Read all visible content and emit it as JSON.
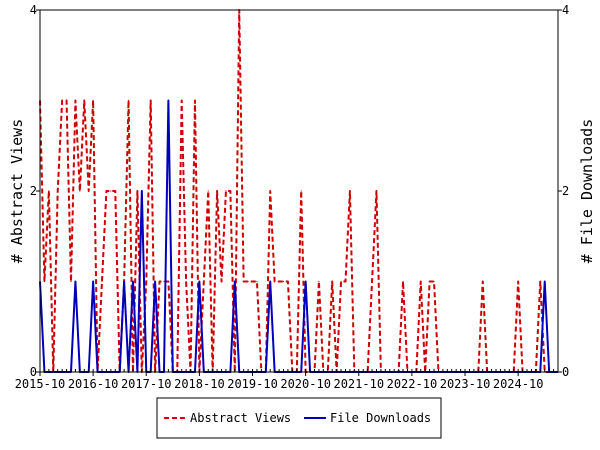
{
  "colors": {
    "abstract_views": "#cc0000",
    "file_downloads": "#0000bb",
    "axis": "#000000",
    "background": "#ffffff"
  },
  "chart_data": {
    "type": "line",
    "title": "",
    "xlabel": "",
    "ylabel_left": "# Abstract Views",
    "ylabel_right": "# File Downloads",
    "ylim_left": [
      0,
      4
    ],
    "ylim_right": [
      0,
      4
    ],
    "yticks_left": [
      "0",
      "2",
      "4"
    ],
    "yticks_right": [
      "0",
      "2",
      "4"
    ],
    "xlim": [
      "2015-10",
      "2025-07"
    ],
    "x_tick_labels": [
      "2015-10",
      "2016-10",
      "2017-10",
      "2018-10",
      "2019-10",
      "2020-10",
      "2021-10",
      "2022-10",
      "2023-10",
      "2024-10"
    ],
    "grid": false,
    "legend_position": "bottom-center",
    "series": [
      {
        "name": "Abstract Views",
        "style": "dashed",
        "points": [
          [
            "2015-10",
            3
          ],
          [
            "2015-11",
            1
          ],
          [
            "2015-12",
            2
          ],
          [
            "2016-01",
            0
          ],
          [
            "2016-02",
            2
          ],
          [
            "2016-03",
            3
          ],
          [
            "2016-04",
            3
          ],
          [
            "2016-05",
            1
          ],
          [
            "2016-06",
            3
          ],
          [
            "2016-07",
            2
          ],
          [
            "2016-08",
            3
          ],
          [
            "2016-09",
            2
          ],
          [
            "2016-10",
            3
          ],
          [
            "2016-11",
            0
          ],
          [
            "2016-12",
            1
          ],
          [
            "2017-01",
            2
          ],
          [
            "2017-02",
            2
          ],
          [
            "2017-03",
            2
          ],
          [
            "2017-04",
            0
          ],
          [
            "2017-05",
            1
          ],
          [
            "2017-06",
            3
          ],
          [
            "2017-07",
            0
          ],
          [
            "2017-08",
            2
          ],
          [
            "2017-09",
            0
          ],
          [
            "2017-10",
            1
          ],
          [
            "2017-11",
            3
          ],
          [
            "2017-12",
            0
          ],
          [
            "2018-01",
            1
          ],
          [
            "2018-02",
            1
          ],
          [
            "2018-03",
            1
          ],
          [
            "2018-04",
            0
          ],
          [
            "2018-05",
            0
          ],
          [
            "2018-06",
            3
          ],
          [
            "2018-07",
            1
          ],
          [
            "2018-08",
            0
          ],
          [
            "2018-09",
            3
          ],
          [
            "2018-10",
            0
          ],
          [
            "2018-11",
            1
          ],
          [
            "2018-12",
            2
          ],
          [
            "2019-01",
            0
          ],
          [
            "2019-02",
            2
          ],
          [
            "2019-03",
            1
          ],
          [
            "2019-04",
            2
          ],
          [
            "2019-05",
            2
          ],
          [
            "2019-06",
            0
          ],
          [
            "2019-07",
            4
          ],
          [
            "2019-08",
            1
          ],
          [
            "2019-09",
            1
          ],
          [
            "2019-10",
            1
          ],
          [
            "2019-11",
            1
          ],
          [
            "2019-12",
            0
          ],
          [
            "2020-01",
            0
          ],
          [
            "2020-02",
            2
          ],
          [
            "2020-03",
            1
          ],
          [
            "2020-04",
            1
          ],
          [
            "2020-05",
            1
          ],
          [
            "2020-06",
            1
          ],
          [
            "2020-07",
            0
          ],
          [
            "2020-08",
            0
          ],
          [
            "2020-09",
            2
          ],
          [
            "2020-10",
            0
          ],
          [
            "2020-11",
            0
          ],
          [
            "2020-12",
            0
          ],
          [
            "2021-01",
            1
          ],
          [
            "2021-02",
            0
          ],
          [
            "2021-03",
            0
          ],
          [
            "2021-04",
            1
          ],
          [
            "2021-05",
            0
          ],
          [
            "2021-06",
            1
          ],
          [
            "2021-07",
            1
          ],
          [
            "2021-08",
            2
          ],
          [
            "2021-09",
            0
          ],
          [
            "2021-10",
            0
          ],
          [
            "2021-11",
            0
          ],
          [
            "2021-12",
            0
          ],
          [
            "2022-01",
            1
          ],
          [
            "2022-02",
            2
          ],
          [
            "2022-03",
            0
          ],
          [
            "2022-04",
            0
          ],
          [
            "2022-05",
            0
          ],
          [
            "2022-06",
            0
          ],
          [
            "2022-07",
            0
          ],
          [
            "2022-08",
            1
          ],
          [
            "2022-09",
            0
          ],
          [
            "2022-10",
            0
          ],
          [
            "2022-11",
            0
          ],
          [
            "2022-12",
            1
          ],
          [
            "2023-01",
            0
          ],
          [
            "2023-02",
            1
          ],
          [
            "2023-03",
            1
          ],
          [
            "2023-04",
            0
          ],
          [
            "2023-05",
            0
          ],
          [
            "2023-06",
            0
          ],
          [
            "2023-07",
            0
          ],
          [
            "2023-08",
            0
          ],
          [
            "2023-09",
            0
          ],
          [
            "2023-10",
            0
          ],
          [
            "2023-11",
            0
          ],
          [
            "2023-12",
            0
          ],
          [
            "2024-01",
            0
          ],
          [
            "2024-02",
            1
          ],
          [
            "2024-03",
            0
          ],
          [
            "2024-04",
            0
          ],
          [
            "2024-05",
            0
          ],
          [
            "2024-06",
            0
          ],
          [
            "2024-07",
            0
          ],
          [
            "2024-08",
            0
          ],
          [
            "2024-09",
            0
          ],
          [
            "2024-10",
            1
          ],
          [
            "2024-11",
            0
          ],
          [
            "2024-12",
            0
          ],
          [
            "2025-01",
            0
          ],
          [
            "2025-02",
            0
          ],
          [
            "2025-03",
            1
          ],
          [
            "2025-04",
            0
          ],
          [
            "2025-05",
            0
          ],
          [
            "2025-06",
            0
          ],
          [
            "2025-07",
            0
          ]
        ]
      },
      {
        "name": "File Downloads",
        "style": "solid",
        "points": [
          [
            "2015-10",
            1
          ],
          [
            "2015-11",
            0
          ],
          [
            "2015-12",
            0
          ],
          [
            "2016-01",
            0
          ],
          [
            "2016-02",
            0
          ],
          [
            "2016-03",
            0
          ],
          [
            "2016-04",
            0
          ],
          [
            "2016-05",
            0
          ],
          [
            "2016-06",
            1
          ],
          [
            "2016-07",
            0
          ],
          [
            "2016-08",
            0
          ],
          [
            "2016-09",
            0
          ],
          [
            "2016-10",
            1
          ],
          [
            "2016-11",
            0
          ],
          [
            "2016-12",
            0
          ],
          [
            "2017-01",
            0
          ],
          [
            "2017-02",
            0
          ],
          [
            "2017-03",
            0
          ],
          [
            "2017-04",
            0
          ],
          [
            "2017-05",
            1
          ],
          [
            "2017-06",
            0
          ],
          [
            "2017-07",
            1
          ],
          [
            "2017-08",
            0
          ],
          [
            "2017-09",
            2
          ],
          [
            "2017-10",
            0
          ],
          [
            "2017-11",
            0
          ],
          [
            "2017-12",
            1
          ],
          [
            "2018-01",
            0
          ],
          [
            "2018-02",
            0
          ],
          [
            "2018-03",
            3
          ],
          [
            "2018-04",
            0
          ],
          [
            "2018-05",
            0
          ],
          [
            "2018-06",
            0
          ],
          [
            "2018-07",
            0
          ],
          [
            "2018-08",
            0
          ],
          [
            "2018-09",
            0
          ],
          [
            "2018-10",
            1
          ],
          [
            "2018-11",
            0
          ],
          [
            "2018-12",
            0
          ],
          [
            "2019-01",
            0
          ],
          [
            "2019-02",
            0
          ],
          [
            "2019-03",
            0
          ],
          [
            "2019-04",
            0
          ],
          [
            "2019-05",
            0
          ],
          [
            "2019-06",
            1
          ],
          [
            "2019-07",
            0
          ],
          [
            "2019-08",
            0
          ],
          [
            "2019-09",
            0
          ],
          [
            "2019-10",
            0
          ],
          [
            "2019-11",
            0
          ],
          [
            "2019-12",
            0
          ],
          [
            "2020-01",
            0
          ],
          [
            "2020-02",
            1
          ],
          [
            "2020-03",
            0
          ],
          [
            "2020-04",
            0
          ],
          [
            "2020-05",
            0
          ],
          [
            "2020-06",
            0
          ],
          [
            "2020-07",
            0
          ],
          [
            "2020-08",
            0
          ],
          [
            "2020-09",
            0
          ],
          [
            "2020-10",
            1
          ],
          [
            "2020-11",
            0
          ],
          [
            "2020-12",
            0
          ],
          [
            "2021-01",
            0
          ],
          [
            "2021-02",
            0
          ],
          [
            "2021-03",
            0
          ],
          [
            "2021-04",
            0
          ],
          [
            "2021-05",
            0
          ],
          [
            "2021-06",
            0
          ],
          [
            "2021-07",
            0
          ],
          [
            "2021-08",
            0
          ],
          [
            "2021-09",
            0
          ],
          [
            "2021-10",
            0
          ],
          [
            "2021-11",
            0
          ],
          [
            "2021-12",
            0
          ],
          [
            "2022-01",
            0
          ],
          [
            "2022-02",
            0
          ],
          [
            "2022-03",
            0
          ],
          [
            "2022-04",
            0
          ],
          [
            "2022-05",
            0
          ],
          [
            "2022-06",
            0
          ],
          [
            "2022-07",
            0
          ],
          [
            "2022-08",
            0
          ],
          [
            "2022-09",
            0
          ],
          [
            "2022-10",
            0
          ],
          [
            "2022-11",
            0
          ],
          [
            "2022-12",
            0
          ],
          [
            "2023-01",
            0
          ],
          [
            "2023-02",
            0
          ],
          [
            "2023-03",
            0
          ],
          [
            "2023-04",
            0
          ],
          [
            "2023-05",
            0
          ],
          [
            "2023-06",
            0
          ],
          [
            "2023-07",
            0
          ],
          [
            "2023-08",
            0
          ],
          [
            "2023-09",
            0
          ],
          [
            "2023-10",
            0
          ],
          [
            "2023-11",
            0
          ],
          [
            "2023-12",
            0
          ],
          [
            "2024-01",
            0
          ],
          [
            "2024-02",
            0
          ],
          [
            "2024-03",
            0
          ],
          [
            "2024-04",
            0
          ],
          [
            "2024-05",
            0
          ],
          [
            "2024-06",
            0
          ],
          [
            "2024-07",
            0
          ],
          [
            "2024-08",
            0
          ],
          [
            "2024-09",
            0
          ],
          [
            "2024-10",
            0
          ],
          [
            "2024-11",
            0
          ],
          [
            "2024-12",
            0
          ],
          [
            "2025-01",
            0
          ],
          [
            "2025-02",
            0
          ],
          [
            "2025-03",
            0
          ],
          [
            "2025-04",
            1
          ],
          [
            "2025-05",
            0
          ],
          [
            "2025-06",
            0
          ],
          [
            "2025-07",
            0
          ]
        ]
      }
    ]
  }
}
